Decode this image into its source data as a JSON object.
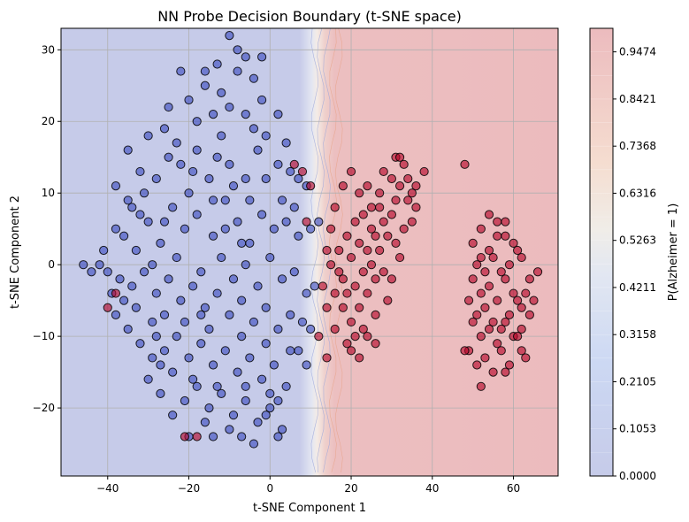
{
  "chart_data": {
    "type": "scatter",
    "title": "NN Probe Decision Boundary (t-SNE space)",
    "xlabel": "t-SNE Component 1",
    "ylabel": "t-SNE Component 2",
    "xlim": [
      -51.5,
      71
    ],
    "ylim": [
      -29.5,
      33
    ],
    "xticks": [
      -40,
      -20,
      0,
      20,
      40,
      60
    ],
    "yticks": [
      -20,
      -10,
      0,
      10,
      20,
      30
    ],
    "grid": true,
    "background": "filled decision-boundary contour of P(Alzheimer = 1)",
    "boundary_x_center": 15,
    "colorbar": {
      "label": "P(Alzheimer = 1)",
      "ticks": [
        "0.0000",
        "0.1053",
        "0.2105",
        "0.3158",
        "0.4211",
        "0.5263",
        "0.6316",
        "0.7368",
        "0.8421",
        "0.9474"
      ],
      "colormap": "coolwarm",
      "alpha": 0.3
    },
    "series": [
      {
        "color": "#3b4cc0",
        "points": [
          [
            -38,
            11
          ],
          [
            -35,
            9
          ],
          [
            -32,
            7
          ],
          [
            -28,
            12
          ],
          [
            -25,
            15
          ],
          [
            -22,
            14
          ],
          [
            -18,
            16
          ],
          [
            -15,
            12
          ],
          [
            -12,
            18
          ],
          [
            -10,
            14
          ],
          [
            -6,
            12
          ],
          [
            -3,
            16
          ],
          [
            2,
            14
          ],
          [
            5,
            13
          ],
          [
            7,
            12
          ],
          [
            9,
            11
          ],
          [
            -36,
            4
          ],
          [
            -33,
            2
          ],
          [
            -30,
            6
          ],
          [
            -27,
            3
          ],
          [
            -24,
            8
          ],
          [
            -21,
            5
          ],
          [
            -18,
            7
          ],
          [
            -14,
            4
          ],
          [
            -11,
            9
          ],
          [
            -8,
            6
          ],
          [
            -5,
            3
          ],
          [
            -2,
            7
          ],
          [
            1,
            5
          ],
          [
            4,
            6
          ],
          [
            7,
            4
          ],
          [
            10,
            5
          ],
          [
            12,
            6
          ],
          [
            -42,
            0
          ],
          [
            -40,
            -1
          ],
          [
            -37,
            -2
          ],
          [
            -34,
            -3
          ],
          [
            -31,
            -1
          ],
          [
            -28,
            -4
          ],
          [
            -25,
            -2
          ],
          [
            -22,
            -5
          ],
          [
            -19,
            -3
          ],
          [
            -16,
            -6
          ],
          [
            -13,
            -4
          ],
          [
            -10,
            -7
          ],
          [
            -7,
            -5
          ],
          [
            -4,
            -8
          ],
          [
            -1,
            -6
          ],
          [
            2,
            -9
          ],
          [
            5,
            -7
          ],
          [
            8,
            -8
          ],
          [
            10,
            -9
          ],
          [
            -38,
            -7
          ],
          [
            -35,
            -9
          ],
          [
            -32,
            -11
          ],
          [
            -29,
            -8
          ],
          [
            -26,
            -12
          ],
          [
            -23,
            -10
          ],
          [
            -20,
            -13
          ],
          [
            -17,
            -11
          ],
          [
            -14,
            -14
          ],
          [
            -11,
            -12
          ],
          [
            -8,
            -15
          ],
          [
            -5,
            -13
          ],
          [
            -2,
            -16
          ],
          [
            1,
            -14
          ],
          [
            4,
            -17
          ],
          [
            7,
            -12
          ],
          [
            -30,
            -16
          ],
          [
            -27,
            -18
          ],
          [
            -24,
            -15
          ],
          [
            -21,
            -19
          ],
          [
            -18,
            -17
          ],
          [
            -15,
            -20
          ],
          [
            -12,
            -18
          ],
          [
            -9,
            -21
          ],
          [
            -6,
            -19
          ],
          [
            -3,
            -22
          ],
          [
            0,
            -20
          ],
          [
            3,
            -23
          ],
          [
            -20,
            -24
          ],
          [
            -16,
            -22
          ],
          [
            -10,
            -23
          ],
          [
            -4,
            -25
          ],
          [
            2,
            -24
          ],
          [
            -25,
            22
          ],
          [
            -20,
            23
          ],
          [
            -16,
            25
          ],
          [
            -12,
            24
          ],
          [
            -8,
            27
          ],
          [
            -4,
            26
          ],
          [
            -18,
            20
          ],
          [
            -14,
            21
          ],
          [
            -10,
            22
          ],
          [
            -6,
            21
          ],
          [
            -2,
            23
          ],
          [
            2,
            21
          ],
          [
            -2,
            29
          ],
          [
            -8,
            30
          ],
          [
            -13,
            28
          ],
          [
            -16,
            27
          ],
          [
            -46,
            0
          ],
          [
            -44,
            -1
          ],
          [
            -41,
            2
          ],
          [
            -38,
            5
          ],
          [
            -36,
            -5
          ],
          [
            -39,
            -4
          ],
          [
            -34,
            8
          ],
          [
            -31,
            10
          ],
          [
            -26,
            19
          ],
          [
            -23,
            17
          ],
          [
            -19,
            13
          ],
          [
            -13,
            15
          ],
          [
            -9,
            11
          ],
          [
            -5,
            9
          ],
          [
            -1,
            12
          ],
          [
            3,
            9
          ],
          [
            6,
            8
          ],
          [
            -29,
            0
          ],
          [
            -26,
            -7
          ],
          [
            -23,
            1
          ],
          [
            -17,
            -1
          ],
          [
            -12,
            1
          ],
          [
            -9,
            -2
          ],
          [
            -6,
            0
          ],
          [
            -3,
            -3
          ],
          [
            0,
            1
          ],
          [
            3,
            -2
          ],
          [
            6,
            -1
          ],
          [
            9,
            -4
          ],
          [
            11,
            -3
          ],
          [
            -33,
            -6
          ],
          [
            -28,
            -10
          ],
          [
            -21,
            -8
          ],
          [
            -15,
            -9
          ],
          [
            -7,
            -10
          ],
          [
            -1,
            -11
          ],
          [
            5,
            -12
          ],
          [
            9,
            -14
          ],
          [
            -27,
            -14
          ],
          [
            -19,
            -16
          ],
          [
            -13,
            -17
          ],
          [
            -6,
            -17
          ],
          [
            0,
            -18
          ],
          [
            -24,
            -21
          ],
          [
            -14,
            -24
          ],
          [
            -7,
            -24
          ],
          [
            -1,
            -21
          ],
          [
            2,
            -19
          ],
          [
            -11,
            5
          ],
          [
            -7,
            3
          ],
          [
            -14,
            9
          ],
          [
            -20,
            10
          ],
          [
            -26,
            6
          ],
          [
            -32,
            13
          ],
          [
            -35,
            16
          ],
          [
            -30,
            18
          ],
          [
            -22,
            27
          ],
          [
            -10,
            32
          ],
          [
            -6,
            29
          ],
          [
            -4,
            19
          ],
          [
            -1,
            18
          ],
          [
            4,
            17
          ],
          [
            -17,
            -7
          ],
          [
            -29,
            -13
          ]
        ]
      },
      {
        "color": "#b40426",
        "points": [
          [
            20,
            13
          ],
          [
            22,
            10
          ],
          [
            24,
            11
          ],
          [
            25,
            8
          ],
          [
            27,
            10
          ],
          [
            28,
            13
          ],
          [
            30,
            12
          ],
          [
            31,
            15
          ],
          [
            33,
            14
          ],
          [
            32,
            11
          ],
          [
            34,
            9
          ],
          [
            36,
            8
          ],
          [
            35,
            6
          ],
          [
            33,
            5
          ],
          [
            31,
            3
          ],
          [
            29,
            4
          ],
          [
            27,
            2
          ],
          [
            25,
            0
          ],
          [
            23,
            -1
          ],
          [
            21,
            -3
          ],
          [
            19,
            -4
          ],
          [
            18,
            -6
          ],
          [
            20,
            -8
          ],
          [
            22,
            -6
          ],
          [
            24,
            -4
          ],
          [
            26,
            -2
          ],
          [
            28,
            -1
          ],
          [
            30,
            -2
          ],
          [
            32,
            1
          ],
          [
            29,
            -5
          ],
          [
            26,
            -7
          ],
          [
            23,
            -9
          ],
          [
            21,
            -10
          ],
          [
            19,
            -11
          ],
          [
            16,
            -9
          ],
          [
            14,
            -6
          ],
          [
            13,
            -3
          ],
          [
            15,
            0
          ],
          [
            17,
            2
          ],
          [
            19,
            4
          ],
          [
            21,
            6
          ],
          [
            23,
            7
          ],
          [
            16,
            8
          ],
          [
            18,
            11
          ],
          [
            15,
            5
          ],
          [
            14,
            2
          ],
          [
            17,
            -1
          ],
          [
            24,
            2
          ],
          [
            30,
            7
          ],
          [
            34,
            12
          ],
          [
            36,
            11
          ],
          [
            38,
            13
          ],
          [
            28,
            6
          ],
          [
            26,
            4
          ],
          [
            12,
            -10
          ],
          [
            14,
            -13
          ],
          [
            20,
            -12
          ],
          [
            22,
            -13
          ],
          [
            48,
            14
          ],
          [
            32,
            15
          ],
          [
            35,
            10
          ],
          [
            31,
            9
          ],
          [
            27,
            8
          ],
          [
            25,
            5
          ],
          [
            22,
            3
          ],
          [
            20,
            1
          ],
          [
            18,
            -2
          ],
          [
            16,
            -4
          ],
          [
            24,
            -10
          ],
          [
            26,
            -11
          ],
          [
            50,
            3
          ],
          [
            52,
            5
          ],
          [
            54,
            2
          ],
          [
            56,
            4
          ],
          [
            58,
            6
          ],
          [
            60,
            3
          ],
          [
            62,
            1
          ],
          [
            50,
            -2
          ],
          [
            52,
            -4
          ],
          [
            54,
            -3
          ],
          [
            56,
            -5
          ],
          [
            58,
            -2
          ],
          [
            60,
            -4
          ],
          [
            62,
            -6
          ],
          [
            64,
            -2
          ],
          [
            50,
            -8
          ],
          [
            52,
            -10
          ],
          [
            54,
            -9
          ],
          [
            56,
            -11
          ],
          [
            58,
            -8
          ],
          [
            60,
            -10
          ],
          [
            62,
            -12
          ],
          [
            64,
            -7
          ],
          [
            49,
            -12
          ],
          [
            51,
            -14
          ],
          [
            53,
            -13
          ],
          [
            55,
            -15
          ],
          [
            57,
            -12
          ],
          [
            59,
            -14
          ],
          [
            61,
            -10
          ],
          [
            63,
            -13
          ],
          [
            49,
            -5
          ],
          [
            51,
            -7
          ],
          [
            53,
            -6
          ],
          [
            55,
            -8
          ],
          [
            57,
            -9
          ],
          [
            59,
            -7
          ],
          [
            61,
            -5
          ],
          [
            63,
            -4
          ],
          [
            51,
            0
          ],
          [
            53,
            -1
          ],
          [
            55,
            1
          ],
          [
            57,
            -1
          ],
          [
            59,
            0
          ],
          [
            61,
            2
          ],
          [
            56,
            6
          ],
          [
            58,
            4
          ],
          [
            54,
            7
          ],
          [
            52,
            -17
          ],
          [
            48,
            -12
          ],
          [
            66,
            -1
          ],
          [
            52,
            1
          ],
          [
            58,
            -15
          ],
          [
            62,
            -9
          ],
          [
            65,
            -5
          ],
          [
            -40,
            -6
          ],
          [
            -38,
            -4
          ],
          [
            -21,
            -24
          ],
          [
            -18,
            -24
          ],
          [
            6,
            14
          ],
          [
            8,
            13
          ],
          [
            10,
            11
          ],
          [
            9,
            6
          ]
        ]
      }
    ]
  }
}
